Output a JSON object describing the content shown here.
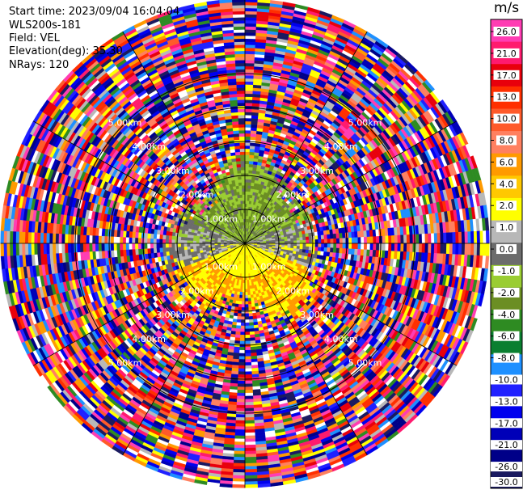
{
  "header": {
    "start_time": "Start time: 2023/09/04 16:04:04",
    "instrument": "WLS200s-181",
    "field": "Field: VEL",
    "elevation": "Elevation(deg): 35.30",
    "nrays": "NRays: 120"
  },
  "chart_data": {
    "type": "heatmap",
    "projection": "polar-ppi",
    "title": "",
    "n_rays": 120,
    "elevation_deg": 35.3,
    "range_rings_km": [
      1.0,
      2.0,
      3.0,
      4.0,
      5.0
    ],
    "ring_labels": [
      "1.00km",
      "2.00km",
      "3.00km",
      "4.00km",
      "5.00km"
    ],
    "max_range_km": 7.2,
    "colorbar": {
      "unit": "m/s",
      "ticks": [
        "26.0",
        "21.0",
        "17.0",
        "13.0",
        "10.0",
        "8.0",
        "6.0",
        "4.0",
        "2.0",
        "1.0",
        "0.0",
        "-1.0",
        "-2.0",
        "-4.0",
        "-6.0",
        "-8.0",
        "-10.0",
        "-13.0",
        "-17.0",
        "-21.0",
        "-26.0",
        "-30.0"
      ],
      "colors": [
        "#ff3db3",
        "#ff1a6e",
        "#e8000c",
        "#ff2f00",
        "#ff5a2a",
        "#ff8060",
        "#ff9a00",
        "#ffc800",
        "#ffff00",
        "#b8b8b8",
        "#6c6c6c",
        "#9acd32",
        "#6b8e23",
        "#2e8b22",
        "#0a7f30",
        "#1e90ff",
        "#2020ff",
        "#0000ee",
        "#0000b8",
        "#000088",
        "#1a1a60"
      ]
    },
    "field_summary": {
      "near_north": "-2.0 to -4.0 m/s (green)",
      "near_south": "2.0 to 6.0 m/s (yellow/orange)",
      "near_east_west": "0.0 to 1.0 m/s (gray)",
      "beyond_3km": "noise (mixed colors)"
    }
  }
}
